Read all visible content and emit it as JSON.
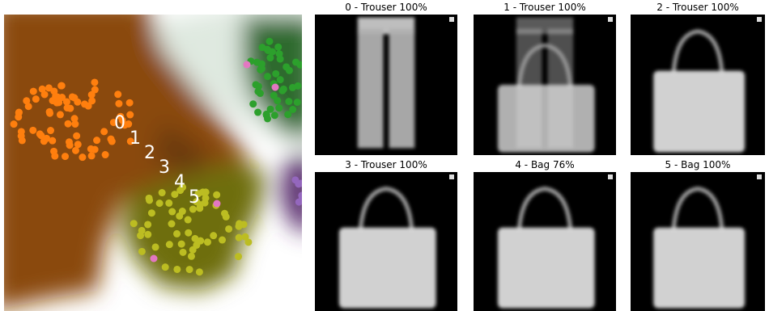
{
  "embedding": {
    "path_labels": [
      "0",
      "1",
      "2",
      "3",
      "4",
      "5"
    ]
  },
  "panels": [
    {
      "title": "0 - Trouser 100%"
    },
    {
      "title": "1 - Trouser 100%"
    },
    {
      "title": "2 - Trouser 100%"
    },
    {
      "title": "3 - Trouser 100%"
    },
    {
      "title": "4 - Bag 76%"
    },
    {
      "title": "5 - Bag 100%"
    }
  ]
}
